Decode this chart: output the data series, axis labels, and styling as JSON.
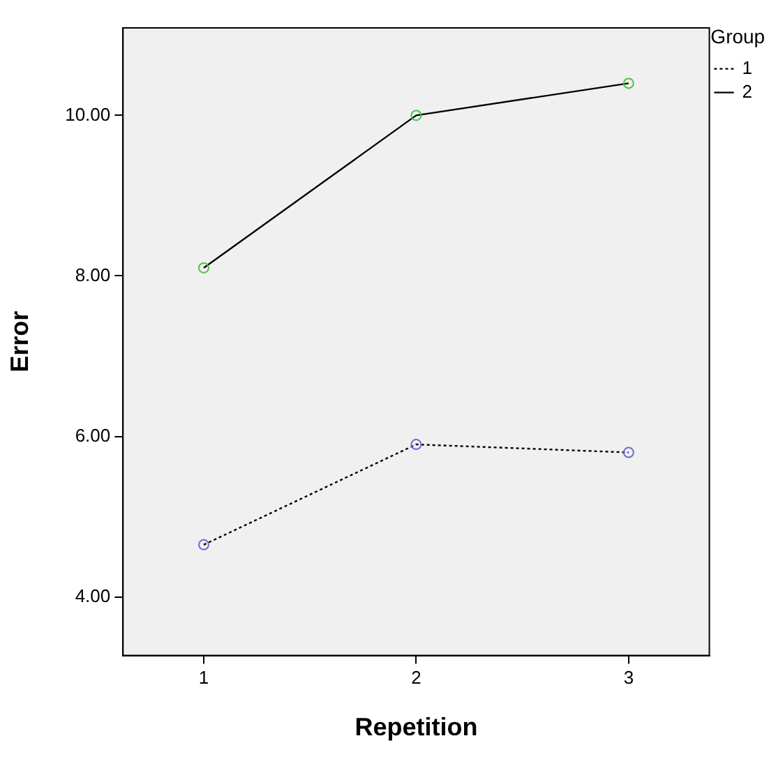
{
  "chart_data": {
    "type": "line",
    "xlabel": "Repetition",
    "ylabel": "Error",
    "legend_title": "Group",
    "x": [
      1,
      2,
      3
    ],
    "xlim": [
      0.62,
      3.38
    ],
    "xticks": [
      1,
      2,
      3
    ],
    "ylim": [
      3.27,
      11.09
    ],
    "yticks": [
      {
        "value": 4,
        "label": "4.00"
      },
      {
        "value": 6,
        "label": "6.00"
      },
      {
        "value": 8,
        "label": "8.00"
      },
      {
        "value": 10,
        "label": "10.00"
      }
    ],
    "series": [
      {
        "name": "1",
        "color": "#000000",
        "colors": [
          "#6b6bd6",
          "#6b6bd6",
          "#6b6bd6"
        ],
        "line_style": "dotted",
        "values": [
          4.65,
          5.9,
          5.8
        ]
      },
      {
        "name": "2",
        "color": "#000000",
        "colors": [
          "#4bc24b",
          "#4bc24b",
          "#4bc24b"
        ],
        "line_style": "solid",
        "values": [
          8.1,
          10.0,
          10.4
        ]
      }
    ],
    "grid": false,
    "legend": "top right",
    "marker": "circle"
  }
}
